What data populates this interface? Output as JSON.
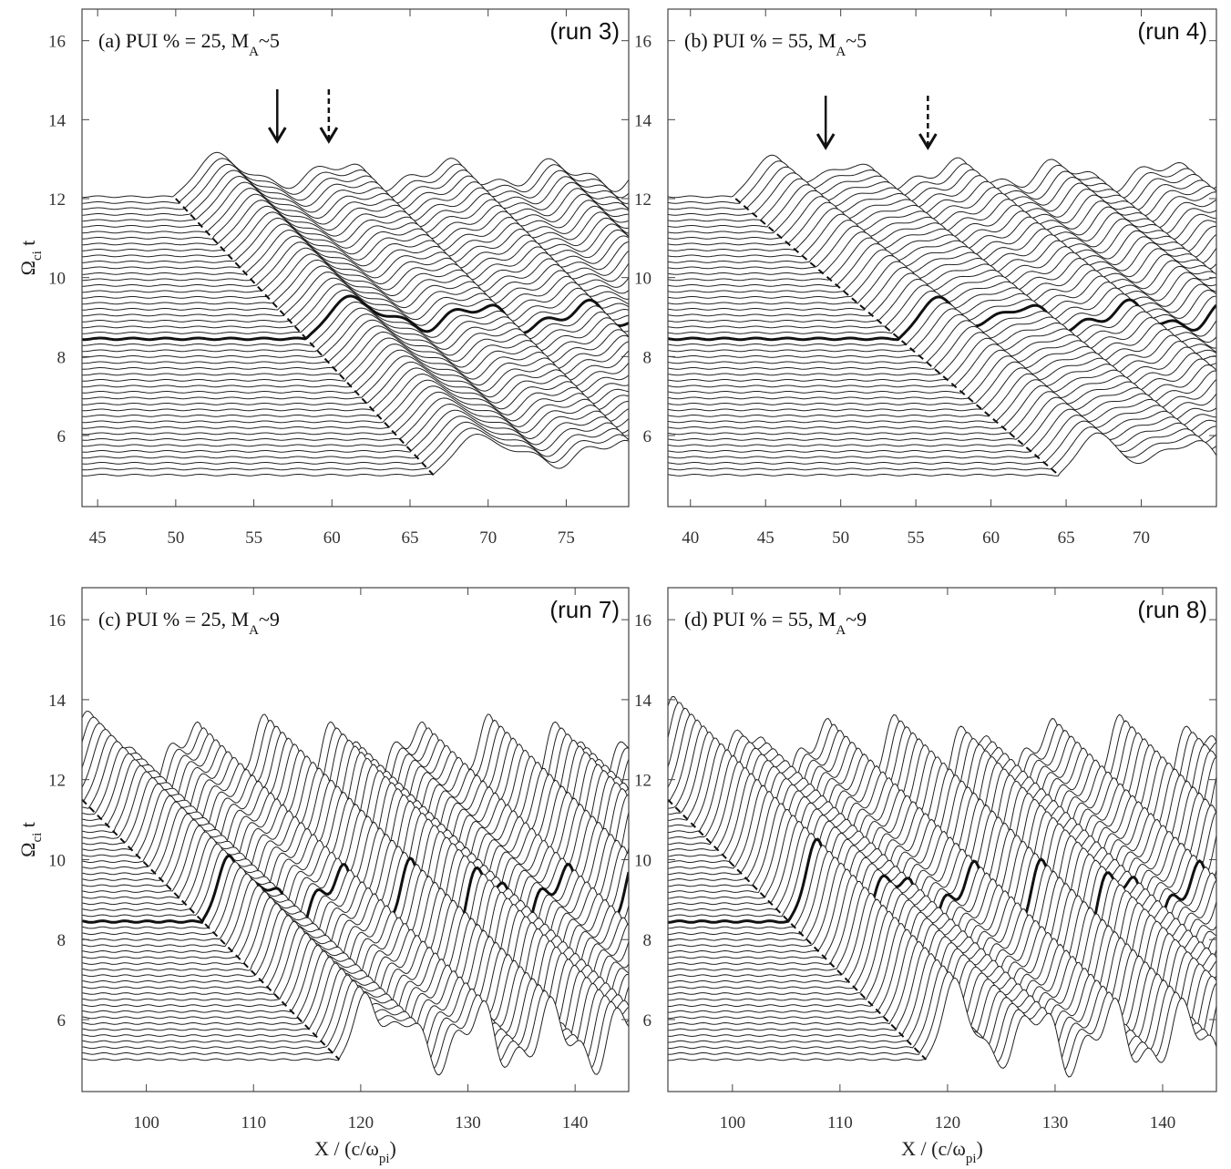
{
  "chart_data": [
    {
      "type": "line",
      "panel": "a",
      "title": "(a) PUI % = 25, M",
      "title_sub": "A",
      "title_tail": "~5",
      "run_label": "(run 3)",
      "ylabel": "Ω",
      "ylabel_sub": "ci",
      "ylabel_tail": "t",
      "xlabel": "",
      "xlim": [
        44,
        79
      ],
      "ylim": [
        4.2,
        16.8
      ],
      "x_ticks": [
        45,
        50,
        55,
        60,
        65,
        70,
        75
      ],
      "y_ticks": [
        6,
        8,
        10,
        12,
        14,
        16
      ],
      "t_range": [
        5.0,
        12.0
      ],
      "t_step": 0.15,
      "x_start": 44,
      "x_end": 79,
      "shock_path": [
        [
          50.0,
          12.0
        ],
        [
          66.5,
          5.0
        ]
      ],
      "highlight_t": 8.5,
      "markers": [
        {
          "x": 56.5,
          "style": "solid"
        },
        {
          "x": 59.8,
          "style": "dashed"
        }
      ],
      "grid": false
    },
    {
      "type": "line",
      "panel": "b",
      "title": "(b) PUI % = 55, M",
      "title_sub": "A",
      "title_tail": "~5",
      "run_label": "(run 4)",
      "ylabel": "",
      "xlabel": "",
      "xlim": [
        38.5,
        75
      ],
      "ylim": [
        4.2,
        16.8
      ],
      "x_ticks": [
        40,
        45,
        50,
        55,
        60,
        65,
        70
      ],
      "y_ticks": [
        6,
        8,
        10,
        12,
        14,
        16
      ],
      "t_range": [
        5.0,
        12.0
      ],
      "t_step": 0.15,
      "x_start": 38.5,
      "x_end": 75,
      "shock_path": [
        [
          43.0,
          12.0
        ],
        [
          64.5,
          5.0
        ]
      ],
      "highlight_t": 8.4,
      "markers": [
        {
          "x": 49.0,
          "style": "solid"
        },
        {
          "x": 55.8,
          "style": "dashed"
        }
      ],
      "grid": false
    },
    {
      "type": "line",
      "panel": "c",
      "title": "(c) PUI % = 25, M",
      "title_sub": "A",
      "title_tail": "~9",
      "run_label": "(run 7)",
      "ylabel": "Ω",
      "ylabel_sub": "ci",
      "ylabel_tail": "t",
      "xlabel": "X / (c/ω",
      "xlabel_sub": "pi",
      "xlabel_tail": ")",
      "xlim": [
        94,
        145
      ],
      "ylim": [
        4.2,
        16.8
      ],
      "x_ticks": [
        100,
        110,
        120,
        130,
        140
      ],
      "y_ticks": [
        6,
        8,
        10,
        12,
        14,
        16
      ],
      "t_range": [
        5.0,
        12.0
      ],
      "t_step": 0.15,
      "x_start": 94,
      "x_end": 145,
      "shock_path": [
        [
          94.0,
          11.5
        ],
        [
          118.0,
          5.0
        ]
      ],
      "highlight_t": 8.4,
      "markers": [],
      "grid": false
    },
    {
      "type": "line",
      "panel": "d",
      "title": "(d) PUI % = 55, M",
      "title_sub": "A",
      "title_tail": "~9",
      "run_label": "(run 8)",
      "ylabel": "",
      "xlabel": "X / (c/ω",
      "xlabel_sub": "pi",
      "xlabel_tail": ")",
      "xlim": [
        94,
        145
      ],
      "ylim": [
        4.2,
        16.8
      ],
      "x_ticks": [
        100,
        110,
        120,
        130,
        140
      ],
      "y_ticks": [
        6,
        8,
        10,
        12,
        14,
        16
      ],
      "t_range": [
        5.0,
        12.0
      ],
      "t_step": 0.15,
      "x_start": 94,
      "x_end": 145,
      "shock_path": [
        [
          94.0,
          11.5
        ],
        [
          118.0,
          5.0
        ]
      ],
      "highlight_t": 8.4,
      "markers": [],
      "grid": false
    }
  ]
}
